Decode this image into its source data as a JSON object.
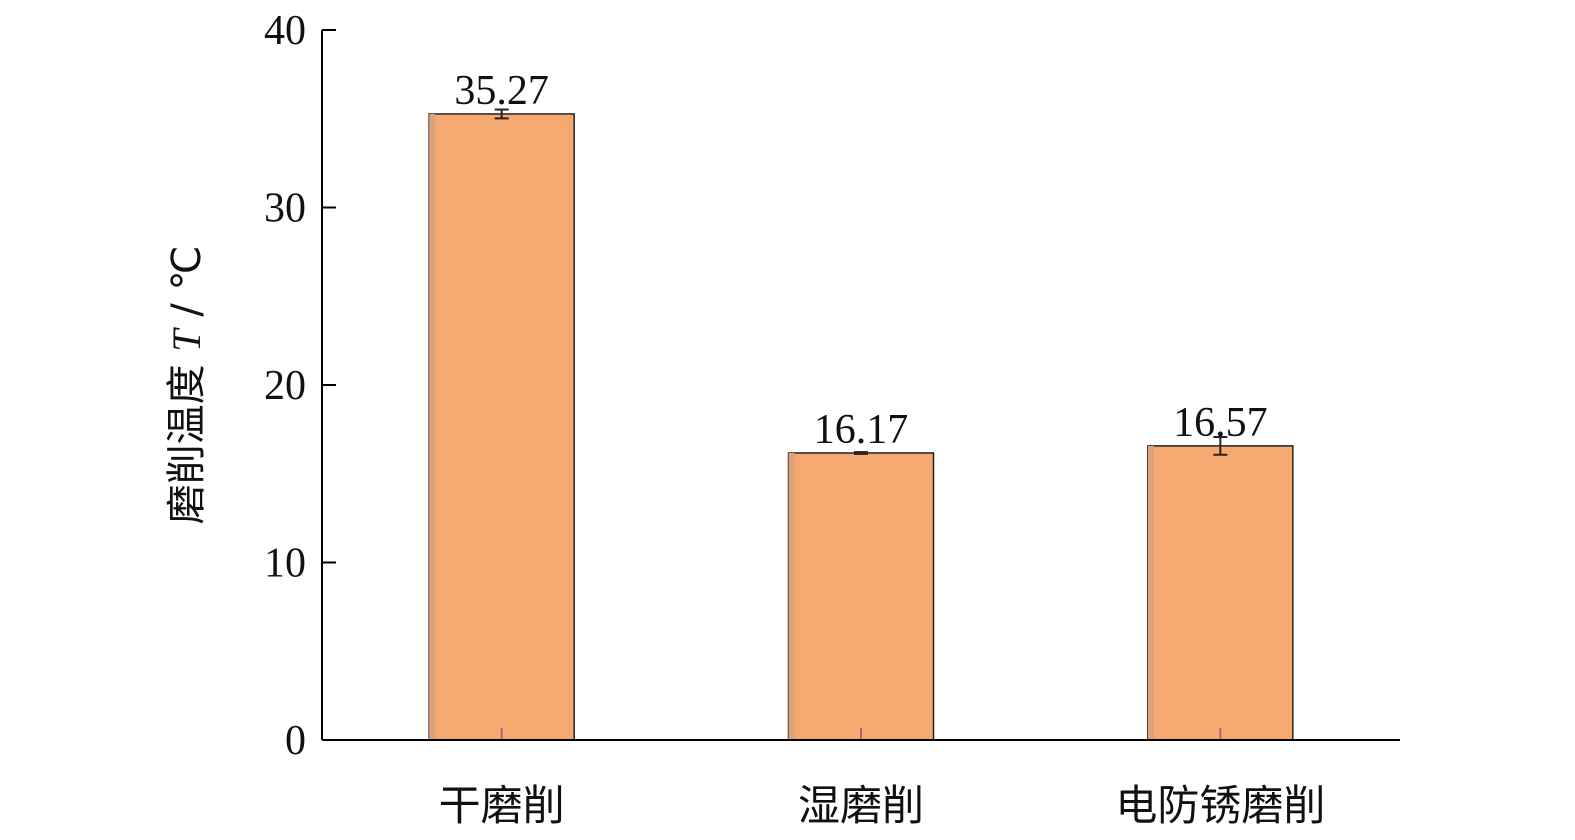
{
  "chart_data": {
    "type": "bar",
    "categories": [
      "干磨削",
      "湿磨削",
      "电防锈磨削"
    ],
    "values": [
      35.27,
      16.17,
      16.57
    ],
    "value_labels": [
      "35.27",
      "16.17",
      "16.57"
    ],
    "errors": [
      0.25,
      0.05,
      0.5
    ],
    "ylabel": {
      "text": "磨削温度 ",
      "symbol": "T",
      "unit": " / ℃"
    },
    "ylim": [
      0,
      40
    ],
    "yticks": [
      0,
      10,
      20,
      30,
      40
    ],
    "grid": false,
    "colors": {
      "bar_fill": "#F5A870",
      "bar_shade": "#D9A27A",
      "axis": "#000000"
    }
  }
}
